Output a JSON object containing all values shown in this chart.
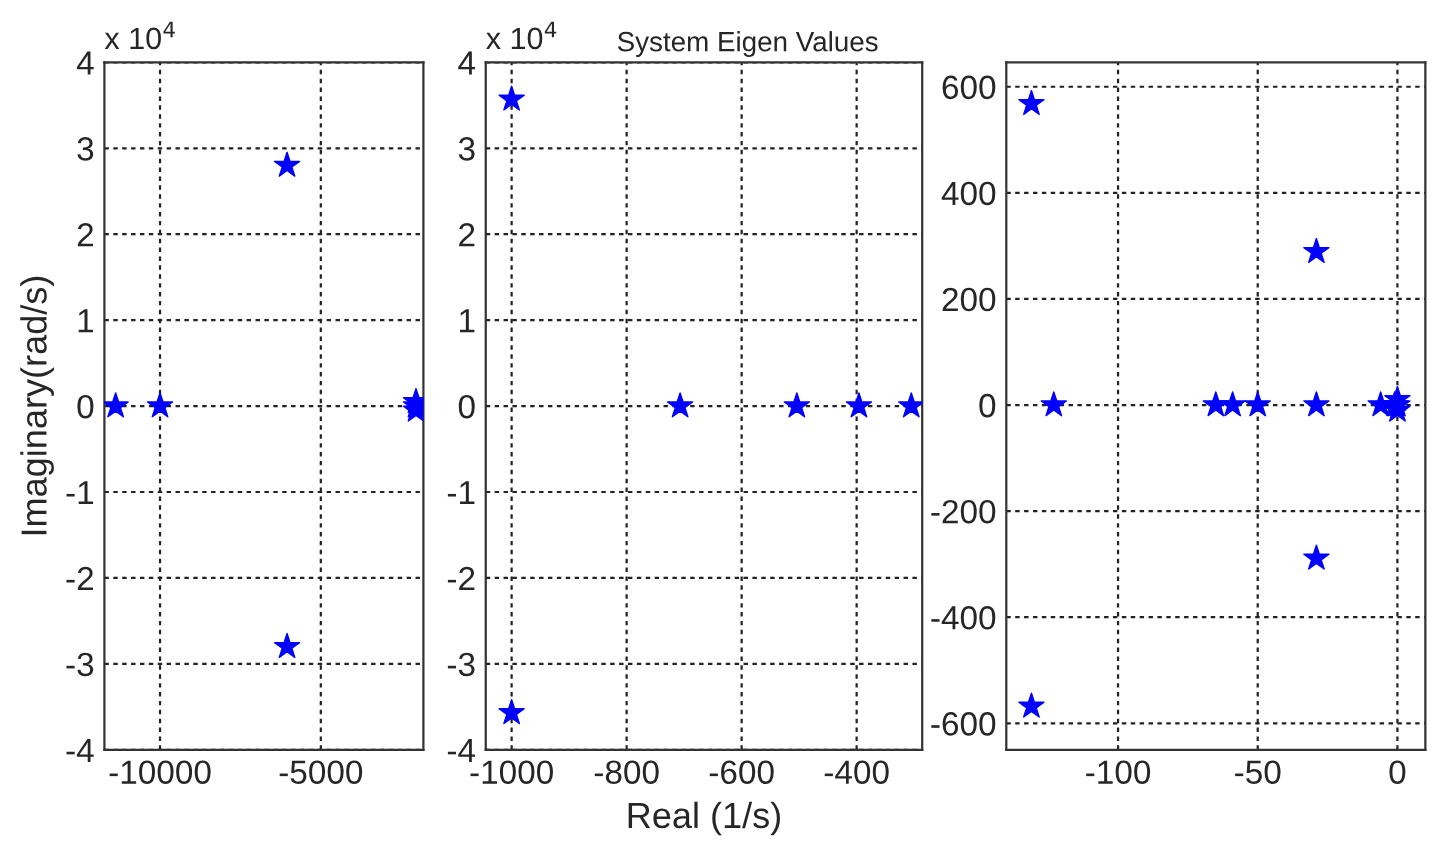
{
  "chart_data": [
    {
      "type": "scatter",
      "ylabel": "Imaginary(rad/s)",
      "annotations": [
        "x 10$^{4}$"
      ],
      "series": [
        {
          "color": "#0000ff",
          "x": [
            -11380,
            -10000,
            -6050,
            -6050,
            -2040,
            -2040,
            -2040
          ],
          "values": [
            0,
            0,
            2.8,
            -2.8,
            0,
            0.05,
            -0.05
          ]
        }
      ],
      "xlim": [
        -11730,
        -1810
      ],
      "ylim": [
        -4,
        4
      ],
      "xticks": [
        -10000,
        -5000
      ],
      "yticks": [
        -4,
        -3,
        -2,
        -1,
        0,
        1,
        2,
        3,
        4
      ],
      "grid": true,
      "marker": "star"
    },
    {
      "type": "scatter",
      "title": "System Eigen Values",
      "xlabel": "Real (1/s)",
      "annotations": [
        "x 10$^{4}$"
      ],
      "series": [
        {
          "color": "#0000ff",
          "x": [
            -1000,
            -1000,
            -707,
            -504,
            -396,
            -305
          ],
          "values": [
            3.57,
            -3.57,
            0,
            0,
            0,
            0
          ]
        }
      ],
      "xlim": [
        -1045,
        -286
      ],
      "ylim": [
        -4,
        4
      ],
      "xticks": [
        -1000,
        -800,
        -600,
        -400
      ],
      "yticks": [
        -4,
        -3,
        -2,
        -1,
        0,
        1,
        2,
        3,
        4
      ],
      "grid": true,
      "marker": "star"
    },
    {
      "type": "scatter",
      "series": [
        {
          "color": "#0000ff",
          "x": [
            -131,
            -131,
            -123,
            -65,
            -59,
            -50,
            -29,
            -29,
            -29,
            -6,
            -1,
            0,
            0,
            0
          ],
          "values": [
            568,
            -568,
            0,
            0,
            0,
            0,
            289,
            0,
            -289,
            0,
            0,
            0,
            10,
            -10
          ]
        }
      ],
      "xlim": [
        -140,
        10
      ],
      "ylim": [
        -650,
        646
      ],
      "xticks": [
        -100,
        -50,
        0
      ],
      "yticks": [
        -600,
        -400,
        -200,
        0,
        200,
        400,
        600
      ],
      "grid": true,
      "marker": "star"
    }
  ]
}
